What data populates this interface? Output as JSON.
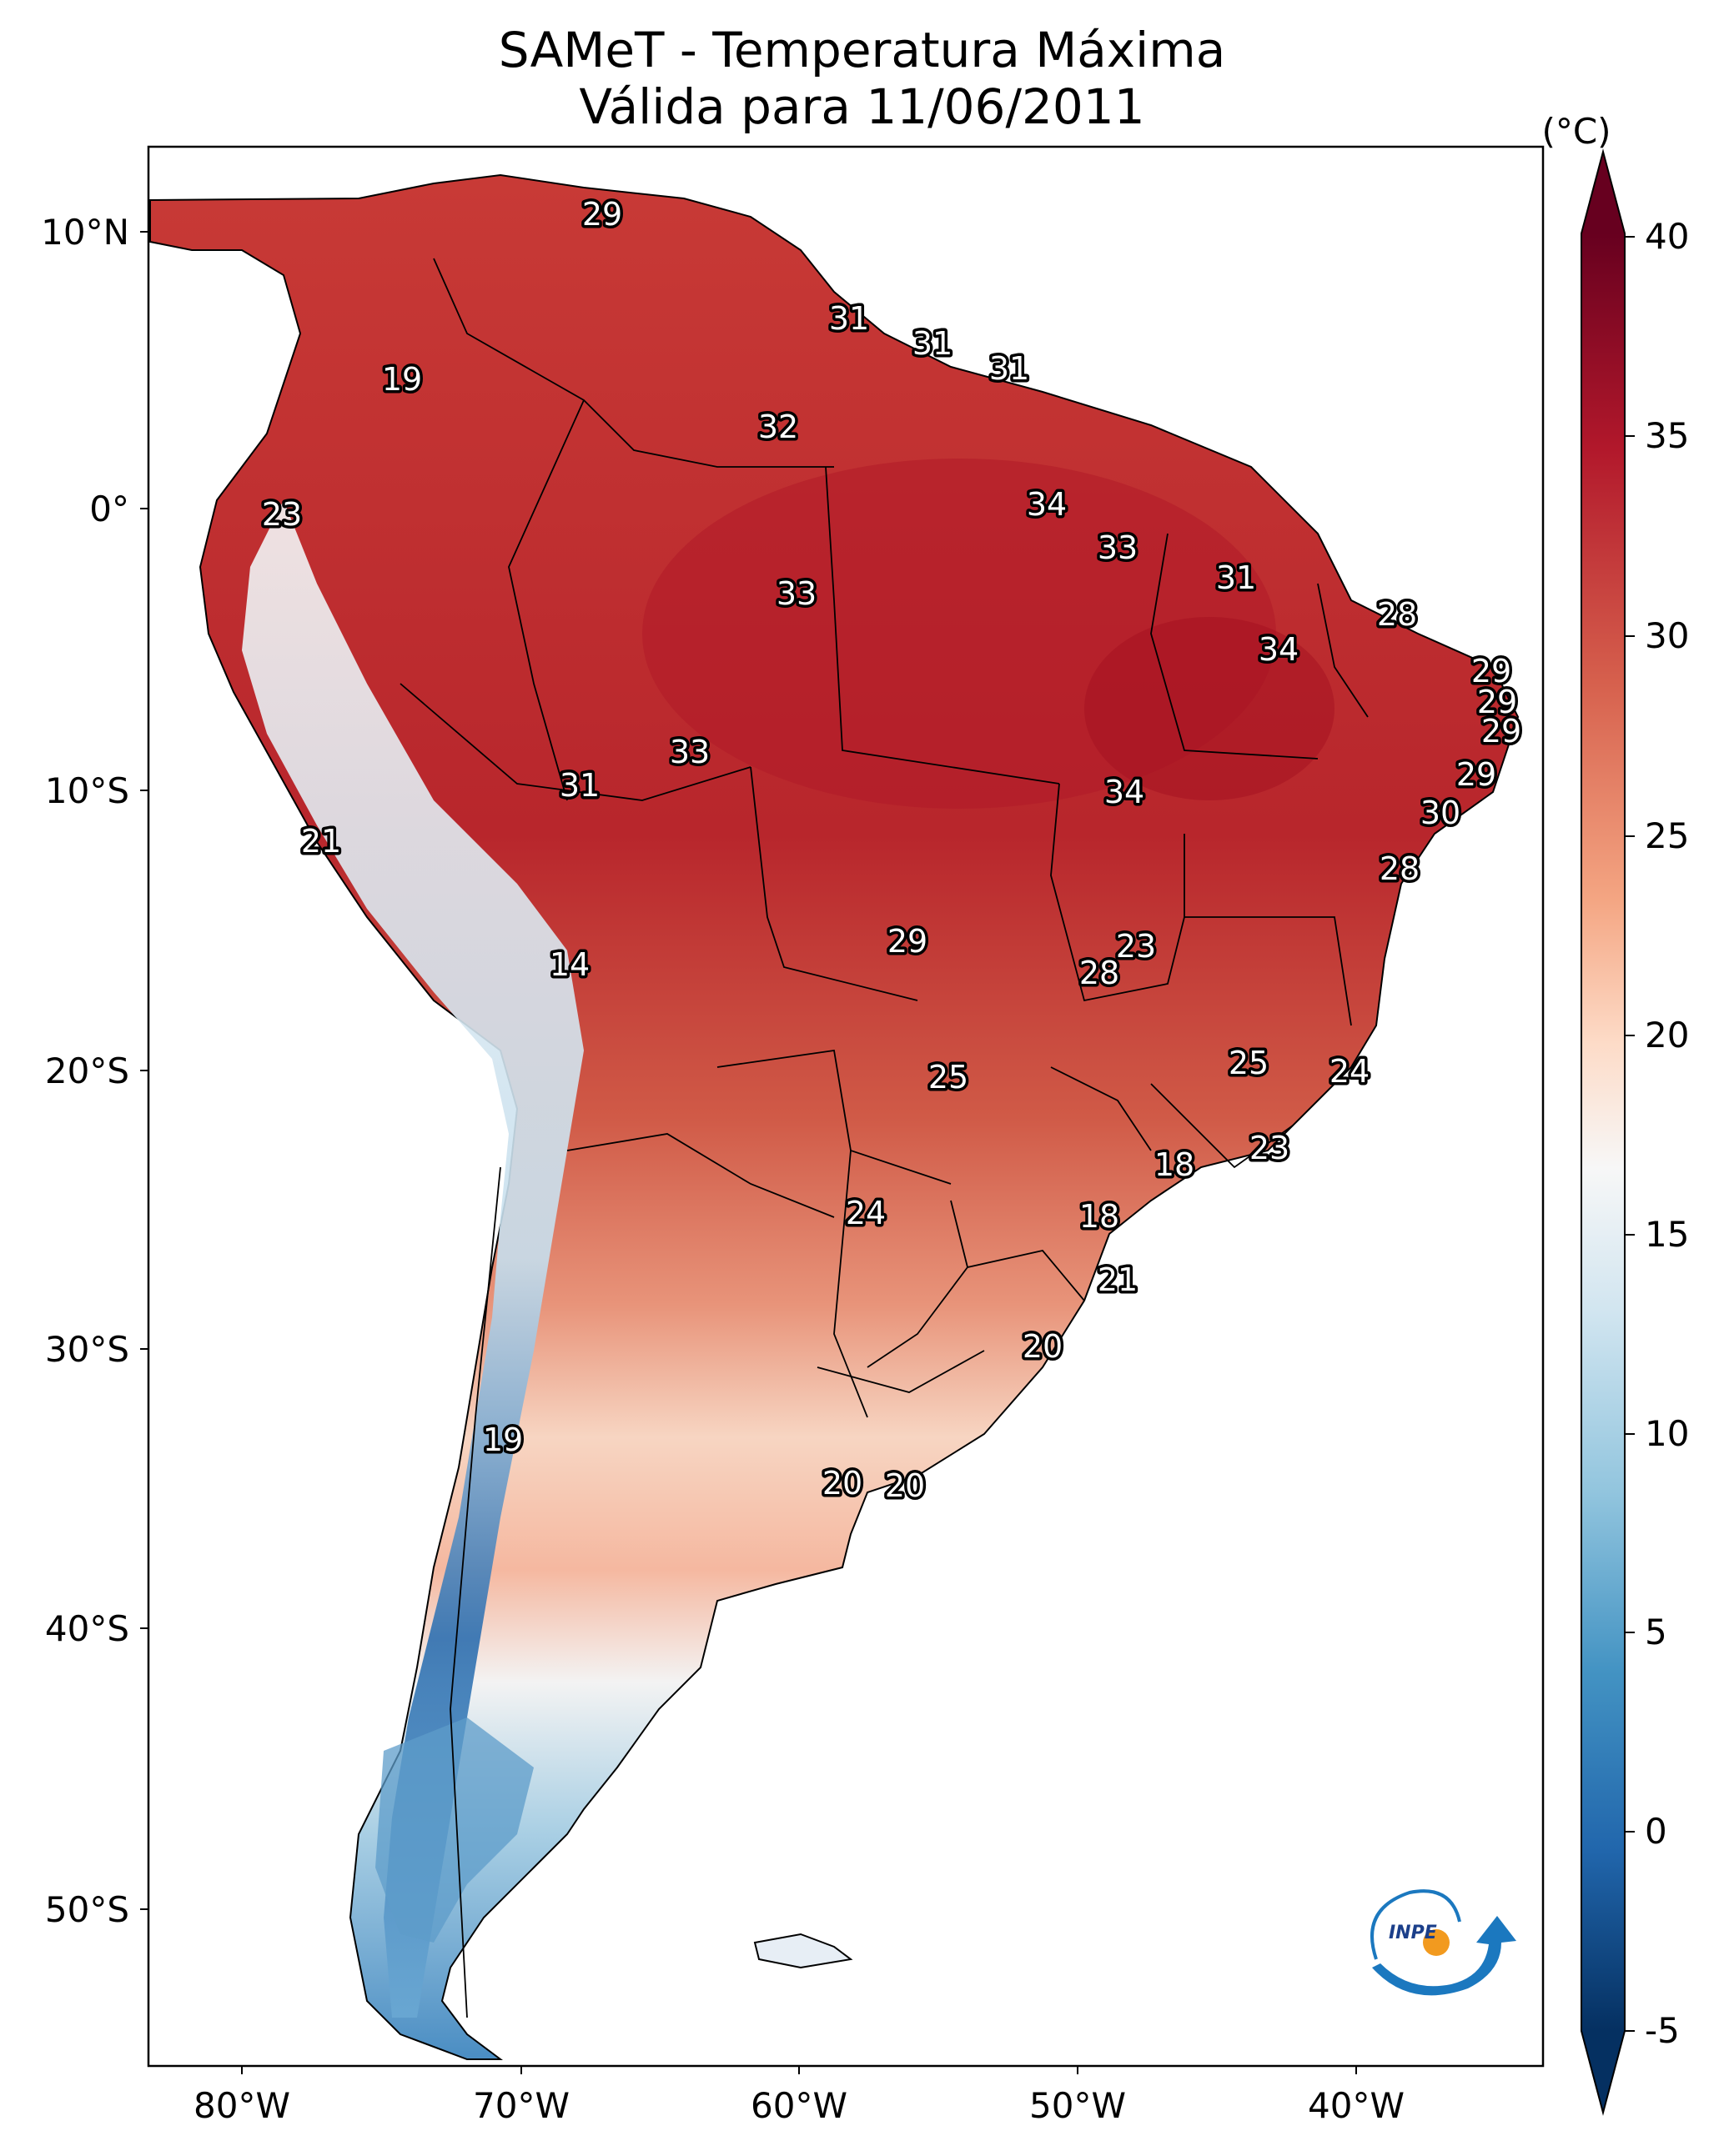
{
  "title_line1": "SAMeT - Temperatura Máxima",
  "title_line2": "Válida para 11/06/2011",
  "colorbar": {
    "unit": "(°C)",
    "ticks": [
      "40",
      "35",
      "30",
      "25",
      "20",
      "15",
      "10",
      "5",
      "0",
      "-5"
    ],
    "min": -5,
    "max": 40,
    "extend": "both",
    "colormap": "RdBu_r"
  },
  "lat_ticks": [
    "10°N",
    "0°",
    "10°S",
    "20°S",
    "30°S",
    "40°S",
    "50°S"
  ],
  "lon_ticks": [
    "80°W",
    "70°W",
    "60°W",
    "50°W",
    "40°W"
  ],
  "station_values": [
    {
      "id": "s1",
      "value": "29"
    },
    {
      "id": "s2",
      "value": "19"
    },
    {
      "id": "s3",
      "value": "31"
    },
    {
      "id": "s4",
      "value": "31"
    },
    {
      "id": "s5",
      "value": "31"
    },
    {
      "id": "s6",
      "value": "32"
    },
    {
      "id": "s7",
      "value": "23"
    },
    {
      "id": "s8",
      "value": "34"
    },
    {
      "id": "s9",
      "value": "33"
    },
    {
      "id": "s10",
      "value": "33"
    },
    {
      "id": "s11",
      "value": "31"
    },
    {
      "id": "s12",
      "value": "28"
    },
    {
      "id": "s13",
      "value": "34"
    },
    {
      "id": "s14",
      "value": "29"
    },
    {
      "id": "s15",
      "value": "29"
    },
    {
      "id": "s16",
      "value": "29"
    },
    {
      "id": "s17",
      "value": "33"
    },
    {
      "id": "s18",
      "value": "31"
    },
    {
      "id": "s19",
      "value": "34"
    },
    {
      "id": "s20",
      "value": "29"
    },
    {
      "id": "s21",
      "value": "30"
    },
    {
      "id": "s22",
      "value": "21"
    },
    {
      "id": "s23",
      "value": "28"
    },
    {
      "id": "s24",
      "value": "14"
    },
    {
      "id": "s25",
      "value": "29"
    },
    {
      "id": "s26",
      "value": "23"
    },
    {
      "id": "s27",
      "value": "28"
    },
    {
      "id": "s28",
      "value": "25"
    },
    {
      "id": "s29",
      "value": "25"
    },
    {
      "id": "s30",
      "value": "24"
    },
    {
      "id": "s31",
      "value": "23"
    },
    {
      "id": "s32",
      "value": "18"
    },
    {
      "id": "s33",
      "value": "24"
    },
    {
      "id": "s34",
      "value": "18"
    },
    {
      "id": "s35",
      "value": "21"
    },
    {
      "id": "s36",
      "value": "20"
    },
    {
      "id": "s37",
      "value": "19"
    },
    {
      "id": "s38",
      "value": "20"
    },
    {
      "id": "s39",
      "value": "20"
    }
  ],
  "logo_text": "INPE",
  "colors": {
    "hot": "#b2182b",
    "warm": "#d6604d",
    "mild": "#f4a582",
    "neutral": "#f7f7f7",
    "cool": "#92c5de",
    "cold": "#2166ac",
    "coldest": "#053061",
    "hottest": "#67001f"
  }
}
